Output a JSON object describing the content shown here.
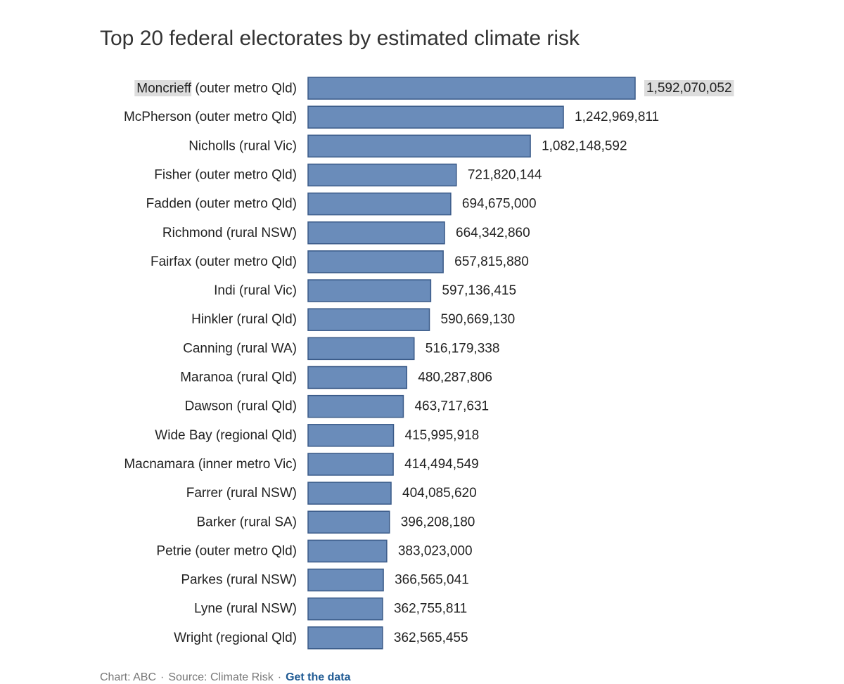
{
  "chart_data": {
    "type": "bar",
    "orientation": "horizontal",
    "title": "Top 20 federal electorates by estimated climate risk",
    "categories": [
      "Moncrieff (outer metro Qld)",
      "McPherson (outer metro Qld)",
      "Nicholls (rural Vic)",
      "Fisher (outer metro Qld)",
      "Fadden (outer metro Qld)",
      "Richmond (rural NSW)",
      "Fairfax (outer metro Qld)",
      "Indi (rural Vic)",
      "Hinkler (rural Qld)",
      "Canning (rural WA)",
      "Maranoa (rural Qld)",
      "Dawson (rural Qld)",
      "Wide Bay (regional Qld)",
      "Macnamara (inner metro Vic)",
      "Farrer (rural NSW)",
      "Barker (rural SA)",
      "Petrie (outer metro Qld)",
      "Parkes (rural NSW)",
      "Lyne (rural NSW)",
      "Wright (regional Qld)"
    ],
    "values": [
      1592070052,
      1242969811,
      1082148592,
      721820144,
      694675000,
      664342860,
      657815880,
      597136415,
      590669130,
      516179338,
      480287806,
      463717631,
      415995918,
      414494549,
      404085620,
      396208180,
      383023000,
      366565041,
      362755811,
      362565455
    ],
    "value_labels": [
      "1,592,070,052",
      "1,242,969,811",
      "1,082,148,592",
      "721,820,144",
      "694,675,000",
      "664,342,860",
      "657,815,880",
      "597,136,415",
      "590,669,130",
      "516,179,338",
      "480,287,806",
      "463,717,631",
      "415,995,918",
      "414,494,549",
      "404,085,620",
      "396,208,180",
      "383,023,000",
      "366,565,041",
      "362,755,811",
      "362,565,455"
    ],
    "highlighted_index": 0,
    "highlighted_term": "Moncrieff",
    "xlim": [
      0,
      1592070052
    ],
    "grid": false,
    "legend": "none",
    "colors": {
      "bar_fill": "#6a8cba",
      "bar_stroke": "#3a5a88",
      "highlight_bg": "#dddddd"
    }
  },
  "footer": {
    "credit": "Chart: ABC",
    "source": "Source: Climate Risk",
    "link": "Get the data"
  }
}
